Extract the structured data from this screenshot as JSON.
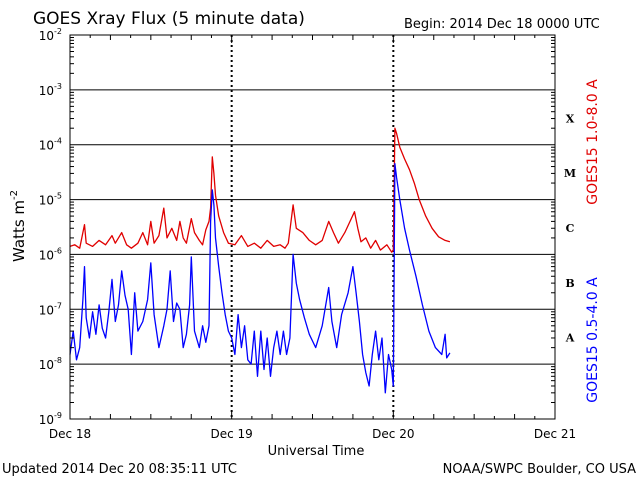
{
  "chart_data": {
    "type": "line",
    "title": "GOES Xray Flux (5 minute data)",
    "begin_text": "Begin:  2014 Dec 18 0000 UTC",
    "xlabel": "Universal Time",
    "ylabel": "Watts m",
    "ylabel_sup": "-2",
    "y_scale": "log",
    "ylim": [
      1e-09,
      0.01
    ],
    "xlim_days": [
      0,
      3
    ],
    "y_ticks": [
      {
        "base": "10",
        "exp": "-2",
        "value": 0.01
      },
      {
        "base": "10",
        "exp": "-3",
        "value": 0.001
      },
      {
        "base": "10",
        "exp": "-4",
        "value": 0.0001
      },
      {
        "base": "10",
        "exp": "-5",
        "value": 1e-05
      },
      {
        "base": "10",
        "exp": "-6",
        "value": 1e-06
      },
      {
        "base": "10",
        "exp": "-7",
        "value": 1e-07
      },
      {
        "base": "10",
        "exp": "-8",
        "value": 1e-08
      },
      {
        "base": "10",
        "exp": "-9",
        "value": 1e-09
      }
    ],
    "x_ticks": [
      {
        "label": "Dec 18",
        "day": 0
      },
      {
        "label": "Dec 19",
        "day": 1
      },
      {
        "label": "Dec 20",
        "day": 2
      },
      {
        "label": "Dec 21",
        "day": 3
      }
    ],
    "flare_classes": [
      {
        "label": "X",
        "low": 0.0001
      },
      {
        "label": "M",
        "low": 1e-05
      },
      {
        "label": "C",
        "low": 1e-06
      },
      {
        "label": "B",
        "low": 1e-07
      },
      {
        "label": "A",
        "low": 1e-08
      }
    ],
    "series": [
      {
        "name": "GOES15 1.0-8.0 A",
        "color": "#e00000",
        "points": [
          [
            0.0,
            1.4e-06
          ],
          [
            0.03,
            1.5e-06
          ],
          [
            0.06,
            1.3e-06
          ],
          [
            0.09,
            3.5e-06
          ],
          [
            0.1,
            1.6e-06
          ],
          [
            0.14,
            1.4e-06
          ],
          [
            0.18,
            1.8e-06
          ],
          [
            0.22,
            1.5e-06
          ],
          [
            0.26,
            2.2e-06
          ],
          [
            0.28,
            1.6e-06
          ],
          [
            0.32,
            2.5e-06
          ],
          [
            0.35,
            1.5e-06
          ],
          [
            0.38,
            1.3e-06
          ],
          [
            0.42,
            1.6e-06
          ],
          [
            0.45,
            2.5e-06
          ],
          [
            0.48,
            1.5e-06
          ],
          [
            0.5,
            4e-06
          ],
          [
            0.52,
            1.6e-06
          ],
          [
            0.55,
            2.2e-06
          ],
          [
            0.58,
            7e-06
          ],
          [
            0.6,
            2e-06
          ],
          [
            0.63,
            3e-06
          ],
          [
            0.66,
            1.8e-06
          ],
          [
            0.68,
            4e-06
          ],
          [
            0.7,
            2e-06
          ],
          [
            0.72,
            1.6e-06
          ],
          [
            0.75,
            4.5e-06
          ],
          [
            0.77,
            2.5e-06
          ],
          [
            0.8,
            1.8e-06
          ],
          [
            0.82,
            1.5e-06
          ],
          [
            0.84,
            2.8e-06
          ],
          [
            0.86,
            4e-06
          ],
          [
            0.87,
            7e-06
          ],
          [
            0.88,
            6e-05
          ],
          [
            0.89,
            3e-05
          ],
          [
            0.9,
            1.2e-05
          ],
          [
            0.92,
            5e-06
          ],
          [
            0.95,
            2.5e-06
          ],
          [
            0.98,
            1.6e-06
          ],
          [
            1.02,
            1.5e-06
          ],
          [
            1.06,
            2.2e-06
          ],
          [
            1.1,
            1.4e-06
          ],
          [
            1.14,
            1.6e-06
          ],
          [
            1.18,
            1.3e-06
          ],
          [
            1.22,
            1.8e-06
          ],
          [
            1.26,
            1.4e-06
          ],
          [
            1.3,
            1.5e-06
          ],
          [
            1.33,
            1.3e-06
          ],
          [
            1.35,
            1.6e-06
          ],
          [
            1.38,
            8e-06
          ],
          [
            1.4,
            3e-06
          ],
          [
            1.44,
            2.5e-06
          ],
          [
            1.48,
            1.8e-06
          ],
          [
            1.52,
            1.5e-06
          ],
          [
            1.56,
            1.8e-06
          ],
          [
            1.6,
            4e-06
          ],
          [
            1.63,
            2.5e-06
          ],
          [
            1.66,
            1.6e-06
          ],
          [
            1.7,
            2.5e-06
          ],
          [
            1.74,
            4.5e-06
          ],
          [
            1.76,
            6e-06
          ],
          [
            1.78,
            3e-06
          ],
          [
            1.8,
            1.7e-06
          ],
          [
            1.83,
            2e-06
          ],
          [
            1.86,
            1.3e-06
          ],
          [
            1.89,
            1.8e-06
          ],
          [
            1.92,
            1.2e-06
          ],
          [
            1.96,
            1.5e-06
          ],
          [
            1.99,
            1.1e-06
          ],
          [
            2.0,
            1.2e-06
          ],
          [
            2.01,
            0.0002
          ],
          [
            2.02,
            0.00016
          ],
          [
            2.04,
            9e-05
          ],
          [
            2.07,
            5.5e-05
          ],
          [
            2.1,
            3.5e-05
          ],
          [
            2.13,
            2e-05
          ],
          [
            2.16,
            1e-05
          ],
          [
            2.2,
            5e-06
          ],
          [
            2.24,
            3e-06
          ],
          [
            2.28,
            2.1e-06
          ],
          [
            2.32,
            1.8e-06
          ],
          [
            2.35,
            1.7e-06
          ]
        ]
      },
      {
        "name": "GOES15 0.5-4.0 A",
        "color": "#0000ff",
        "points": [
          [
            0.0,
            1.5e-08
          ],
          [
            0.02,
            4e-08
          ],
          [
            0.04,
            1.2e-08
          ],
          [
            0.06,
            2e-08
          ],
          [
            0.08,
            1.5e-07
          ],
          [
            0.09,
            6e-07
          ],
          [
            0.1,
            7e-08
          ],
          [
            0.12,
            3e-08
          ],
          [
            0.14,
            9e-08
          ],
          [
            0.16,
            3.5e-08
          ],
          [
            0.18,
            1.2e-07
          ],
          [
            0.2,
            4.5e-08
          ],
          [
            0.22,
            3e-08
          ],
          [
            0.24,
            9e-08
          ],
          [
            0.26,
            3.5e-07
          ],
          [
            0.28,
            6e-08
          ],
          [
            0.3,
            1.2e-07
          ],
          [
            0.32,
            5e-07
          ],
          [
            0.34,
            1.8e-07
          ],
          [
            0.36,
            1e-07
          ],
          [
            0.38,
            1.5e-08
          ],
          [
            0.4,
            2e-07
          ],
          [
            0.42,
            4e-08
          ],
          [
            0.45,
            6e-08
          ],
          [
            0.48,
            1.5e-07
          ],
          [
            0.5,
            7e-07
          ],
          [
            0.52,
            8e-08
          ],
          [
            0.55,
            2e-08
          ],
          [
            0.58,
            5e-08
          ],
          [
            0.6,
            1e-07
          ],
          [
            0.62,
            5e-07
          ],
          [
            0.64,
            6e-08
          ],
          [
            0.66,
            1.3e-07
          ],
          [
            0.68,
            1e-07
          ],
          [
            0.7,
            2e-08
          ],
          [
            0.72,
            3.5e-08
          ],
          [
            0.74,
            1.2e-07
          ],
          [
            0.75,
            9e-07
          ],
          [
            0.77,
            4e-08
          ],
          [
            0.8,
            2e-08
          ],
          [
            0.82,
            5e-08
          ],
          [
            0.84,
            2.5e-08
          ],
          [
            0.86,
            5e-08
          ],
          [
            0.87,
            4e-06
          ],
          [
            0.88,
            1.5e-05
          ],
          [
            0.89,
            8e-06
          ],
          [
            0.9,
            2e-06
          ],
          [
            0.92,
            6e-07
          ],
          [
            0.94,
            2e-07
          ],
          [
            0.96,
            8e-08
          ],
          [
            0.98,
            4e-08
          ],
          [
            1.0,
            3e-08
          ],
          [
            1.02,
            1.5e-08
          ],
          [
            1.04,
            8e-08
          ],
          [
            1.06,
            2e-08
          ],
          [
            1.08,
            5e-08
          ],
          [
            1.1,
            1.2e-08
          ],
          [
            1.12,
            1e-08
          ],
          [
            1.14,
            4e-08
          ],
          [
            1.16,
            6e-09
          ],
          [
            1.18,
            4e-08
          ],
          [
            1.2,
            8e-09
          ],
          [
            1.22,
            3e-08
          ],
          [
            1.24,
            6e-09
          ],
          [
            1.26,
            2e-08
          ],
          [
            1.28,
            4e-08
          ],
          [
            1.3,
            1.5e-08
          ],
          [
            1.32,
            4e-08
          ],
          [
            1.34,
            1.5e-08
          ],
          [
            1.36,
            3e-08
          ],
          [
            1.38,
            1e-06
          ],
          [
            1.4,
            3e-07
          ],
          [
            1.42,
            1.5e-07
          ],
          [
            1.45,
            7e-08
          ],
          [
            1.48,
            3.5e-08
          ],
          [
            1.52,
            2e-08
          ],
          [
            1.56,
            5e-08
          ],
          [
            1.6,
            2.5e-07
          ],
          [
            1.62,
            6e-08
          ],
          [
            1.65,
            2e-08
          ],
          [
            1.68,
            8e-08
          ],
          [
            1.72,
            2e-07
          ],
          [
            1.75,
            6e-07
          ],
          [
            1.77,
            2e-07
          ],
          [
            1.79,
            6e-08
          ],
          [
            1.81,
            1.5e-08
          ],
          [
            1.83,
            7e-09
          ],
          [
            1.85,
            4e-09
          ],
          [
            1.87,
            1.5e-08
          ],
          [
            1.89,
            4e-08
          ],
          [
            1.91,
            1.2e-08
          ],
          [
            1.93,
            3e-08
          ],
          [
            1.95,
            3e-09
          ],
          [
            1.97,
            1.5e-08
          ],
          [
            1.99,
            8e-09
          ],
          [
            2.0,
            4e-09
          ],
          [
            2.01,
            4.5e-05
          ],
          [
            2.02,
            2.5e-05
          ],
          [
            2.04,
            1e-05
          ],
          [
            2.07,
            3e-06
          ],
          [
            2.1,
            1.2e-06
          ],
          [
            2.14,
            4e-07
          ],
          [
            2.18,
            1.2e-07
          ],
          [
            2.22,
            4e-08
          ],
          [
            2.26,
            2e-08
          ],
          [
            2.3,
            1.5e-08
          ],
          [
            2.32,
            3.5e-08
          ],
          [
            2.33,
            1.3e-08
          ],
          [
            2.35,
            1.6e-08
          ]
        ]
      }
    ]
  },
  "footer": {
    "updated": "Updated 2014 Dec 20 08:35:11 UTC",
    "credit": "NOAA/SWPC Boulder, CO USA"
  }
}
